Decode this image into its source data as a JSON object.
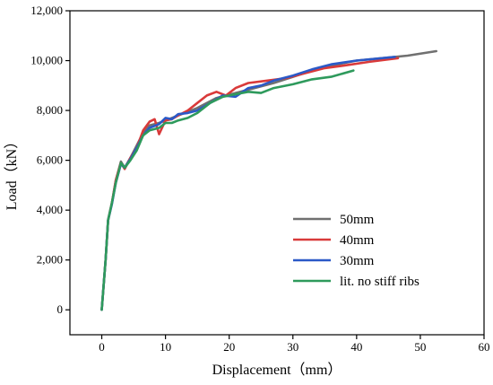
{
  "chart_data": {
    "type": "line",
    "xlabel": "Displacement（mm）",
    "ylabel": "Load（kN）",
    "xlim": [
      -5,
      60
    ],
    "ylim": [
      -1000,
      12000
    ],
    "x_ticks": [
      0,
      10,
      20,
      30,
      40,
      50,
      60
    ],
    "y_ticks": [
      0,
      2000,
      4000,
      6000,
      8000,
      10000,
      12000
    ],
    "x_tick_labels": [
      "0",
      "10",
      "20",
      "30",
      "40",
      "50",
      "60"
    ],
    "y_tick_labels": [
      "0",
      "2,000",
      "4,000",
      "6,000",
      "8,000",
      "10,000",
      "12,000"
    ],
    "grid": false,
    "legend_position": "bottom-right",
    "series": [
      {
        "name": "50mm",
        "color": "#707070",
        "points": [
          [
            0,
            0
          ],
          [
            0.6,
            2000
          ],
          [
            1.0,
            3600
          ],
          [
            1.6,
            4300
          ],
          [
            2.2,
            5200
          ],
          [
            3.0,
            5950
          ],
          [
            3.6,
            5700
          ],
          [
            4.5,
            6100
          ],
          [
            5.5,
            6600
          ],
          [
            6.5,
            7100
          ],
          [
            7.5,
            7400
          ],
          [
            9,
            7500
          ],
          [
            11,
            7700
          ],
          [
            13,
            7900
          ],
          [
            15,
            8100
          ],
          [
            18,
            8500
          ],
          [
            21,
            8700
          ],
          [
            24,
            8900
          ],
          [
            27,
            9100
          ],
          [
            30,
            9350
          ],
          [
            33,
            9600
          ],
          [
            36,
            9800
          ],
          [
            40,
            10000
          ],
          [
            44,
            10100
          ],
          [
            48,
            10200
          ],
          [
            52.5,
            10380
          ]
        ]
      },
      {
        "name": "40mm",
        "color": "#d93a3a",
        "points": [
          [
            0,
            0
          ],
          [
            0.6,
            2000
          ],
          [
            1.0,
            3600
          ],
          [
            1.6,
            4300
          ],
          [
            2.2,
            5200
          ],
          [
            3.0,
            5900
          ],
          [
            3.6,
            5650
          ],
          [
            4.5,
            6100
          ],
          [
            5.5,
            6500
          ],
          [
            6.5,
            7200
          ],
          [
            7.5,
            7550
          ],
          [
            8.3,
            7650
          ],
          [
            9.0,
            7050
          ],
          [
            10,
            7600
          ],
          [
            11,
            7650
          ],
          [
            12,
            7800
          ],
          [
            13.5,
            8000
          ],
          [
            15,
            8300
          ],
          [
            16.5,
            8600
          ],
          [
            18,
            8750
          ],
          [
            19.5,
            8600
          ],
          [
            21,
            8900
          ],
          [
            23,
            9100
          ],
          [
            26,
            9200
          ],
          [
            29,
            9300
          ],
          [
            32,
            9500
          ],
          [
            35,
            9700
          ],
          [
            38,
            9800
          ],
          [
            42,
            9950
          ],
          [
            46.5,
            10100
          ]
        ]
      },
      {
        "name": "30mm",
        "color": "#2b59c7",
        "points": [
          [
            0,
            0
          ],
          [
            0.6,
            2000
          ],
          [
            1.0,
            3600
          ],
          [
            1.6,
            4250
          ],
          [
            2.2,
            5100
          ],
          [
            3.0,
            5850
          ],
          [
            3.6,
            5700
          ],
          [
            4.5,
            6050
          ],
          [
            5.5,
            6500
          ],
          [
            6.5,
            7000
          ],
          [
            7.5,
            7300
          ],
          [
            9,
            7450
          ],
          [
            10,
            7700
          ],
          [
            11,
            7650
          ],
          [
            12,
            7850
          ],
          [
            13.5,
            7900
          ],
          [
            15,
            8000
          ],
          [
            17,
            8300
          ],
          [
            19,
            8600
          ],
          [
            21,
            8550
          ],
          [
            23,
            8900
          ],
          [
            25,
            9000
          ],
          [
            27,
            9200
          ],
          [
            30,
            9400
          ],
          [
            33,
            9650
          ],
          [
            36,
            9850
          ],
          [
            40,
            10000
          ],
          [
            46,
            10150
          ]
        ]
      },
      {
        "name": "lit. no stiff ribs",
        "color": "#2e9a5c",
        "points": [
          [
            0,
            0
          ],
          [
            0.6,
            2000
          ],
          [
            1.0,
            3600
          ],
          [
            1.6,
            4300
          ],
          [
            2.2,
            5100
          ],
          [
            3.0,
            5900
          ],
          [
            3.6,
            5700
          ],
          [
            4.5,
            6000
          ],
          [
            5.5,
            6400
          ],
          [
            6.5,
            7000
          ],
          [
            7.5,
            7200
          ],
          [
            9,
            7300
          ],
          [
            10,
            7500
          ],
          [
            11,
            7500
          ],
          [
            12,
            7600
          ],
          [
            13.5,
            7700
          ],
          [
            15,
            7900
          ],
          [
            17,
            8300
          ],
          [
            19,
            8550
          ],
          [
            21,
            8650
          ],
          [
            23,
            8750
          ],
          [
            25,
            8700
          ],
          [
            27,
            8900
          ],
          [
            30,
            9050
          ],
          [
            33,
            9250
          ],
          [
            36,
            9350
          ],
          [
            39.5,
            9600
          ]
        ]
      }
    ]
  }
}
